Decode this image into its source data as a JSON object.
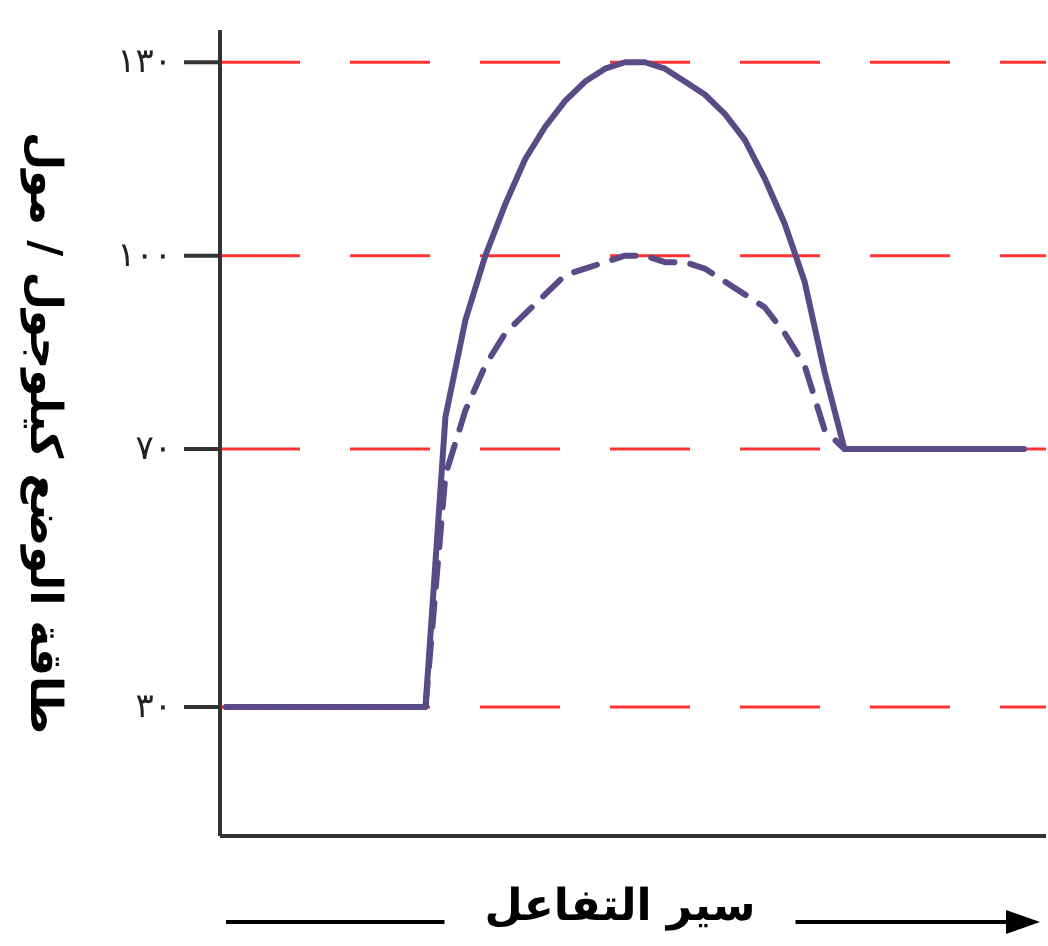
{
  "chart_data": {
    "type": "line",
    "xlabel": "سير التفاعل",
    "ylabel": "طاقة الوضع كيلوجول / مول",
    "categories": [
      null,
      null,
      null,
      null,
      null,
      null,
      null,
      null,
      null,
      null,
      null,
      null,
      null,
      null,
      null,
      null,
      null,
      null,
      null,
      null,
      null,
      null,
      null,
      null,
      null,
      null,
      null,
      null,
      null,
      null,
      null,
      null,
      null,
      null,
      null,
      null,
      null,
      null,
      null,
      null,
      null
    ],
    "series": [
      {
        "color": "#5a4a85",
        "line_style": "solid",
        "values": [
          30,
          30,
          30,
          30,
          30,
          30,
          30,
          30,
          30,
          30,
          30,
          75,
          90,
          100,
          108,
          115,
          120,
          124,
          127,
          129,
          130,
          130,
          129,
          127,
          125,
          122,
          118,
          112,
          105,
          96,
          82,
          70,
          70,
          70,
          70,
          70,
          70,
          70,
          70,
          70,
          70
        ]
      },
      {
        "color": "#5a4a85",
        "line_style": "dashed",
        "values": [
          30,
          30,
          30,
          30,
          30,
          30,
          30,
          30,
          30,
          30,
          30,
          66,
          76,
          83,
          88,
          91,
          94,
          97,
          98,
          99,
          100,
          100,
          99,
          99,
          98,
          96,
          94,
          92,
          88,
          83,
          73,
          70,
          70,
          70,
          70,
          70,
          70,
          70,
          70,
          70,
          70
        ]
      }
    ],
    "ylim": [
      10,
      135
    ],
    "yticks": [
      {
        "value": 30,
        "label": "٣٠"
      },
      {
        "value": 70,
        "label": "٧٠"
      },
      {
        "value": 100,
        "label": "١٠٠"
      },
      {
        "value": 130,
        "label": "١٣٠"
      }
    ],
    "ref_lines": [
      {
        "axis": "y",
        "value": 30,
        "color": "#ff3333",
        "line_style": "dashed"
      },
      {
        "axis": "y",
        "value": 70,
        "color": "#ff3333",
        "line_style": "dashed"
      },
      {
        "axis": "y",
        "value": 100,
        "color": "#ff3333",
        "line_style": "dashed"
      },
      {
        "axis": "y",
        "value": 130,
        "color": "#ff3333",
        "line_style": "dashed"
      }
    ],
    "tick_labels": "y"
  }
}
